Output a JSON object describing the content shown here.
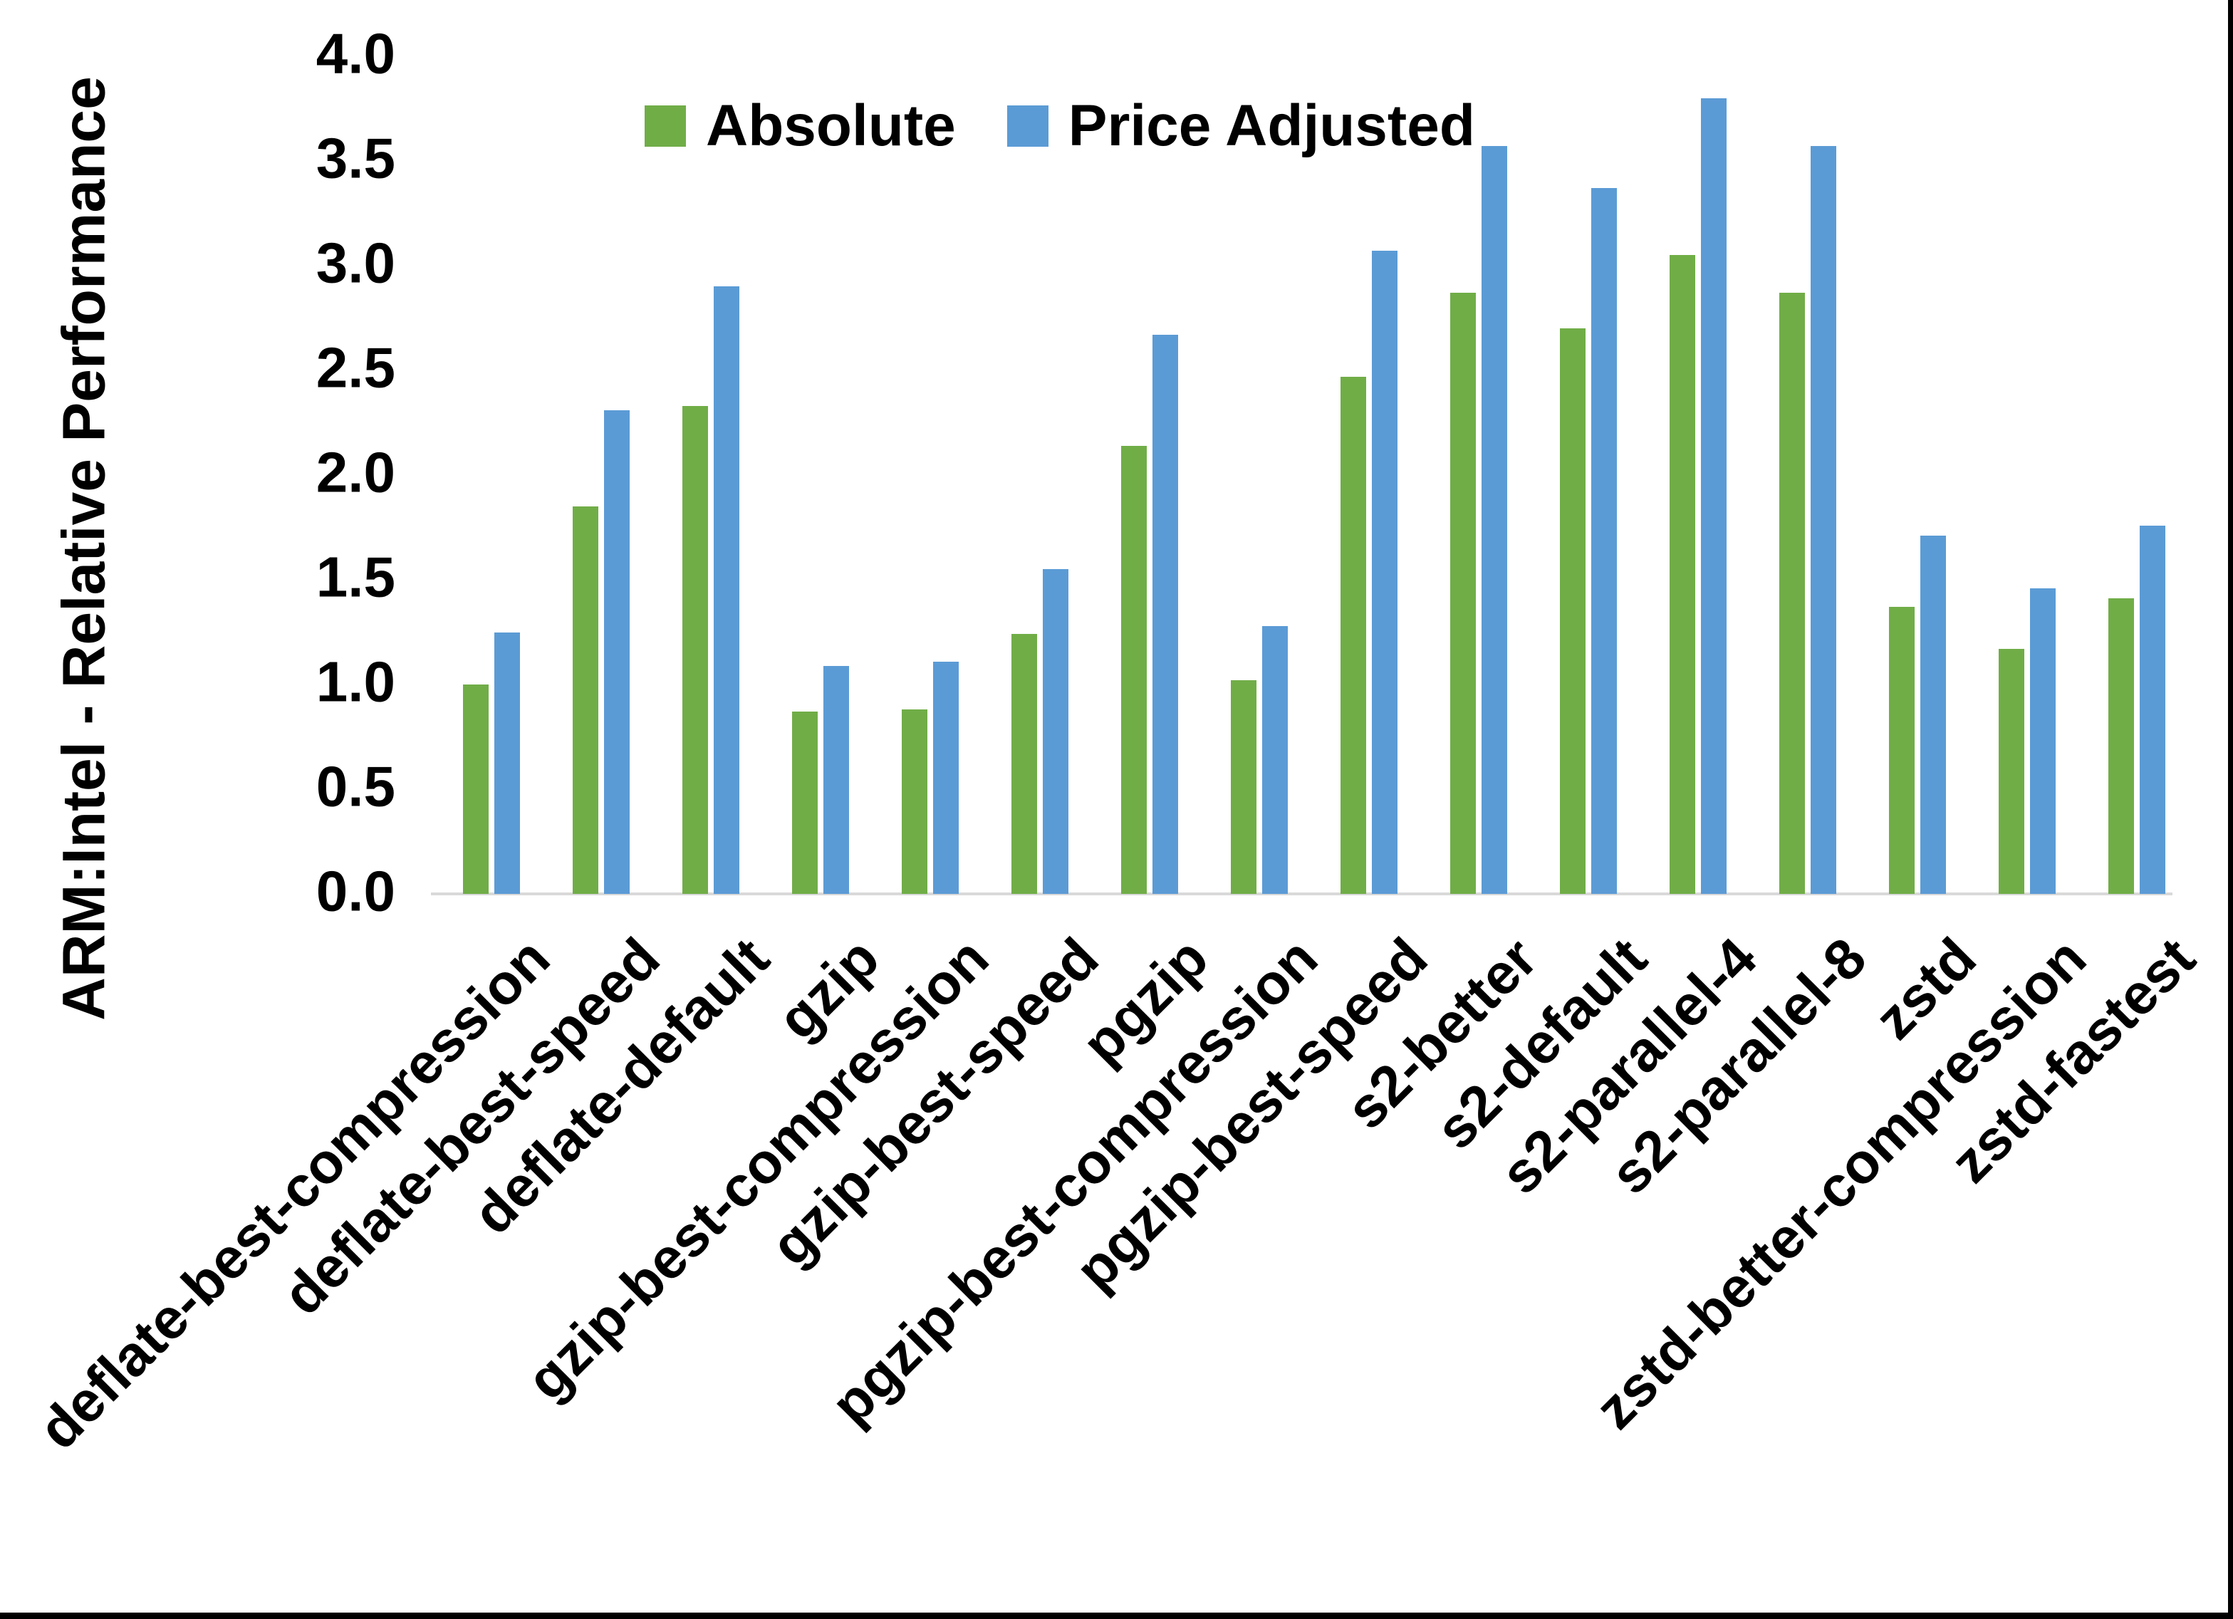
{
  "page": {
    "background": "#ffffff",
    "frame_border_color": "#000000"
  },
  "chart_data": {
    "type": "bar",
    "title": "",
    "xlabel": "",
    "ylabel": "ARM:Intel - Relative Performance",
    "ylim": [
      0,
      4
    ],
    "ytick_step": 0.5,
    "yticks": [
      "4.0",
      "3.5",
      "3.0",
      "2.5",
      "2.0",
      "1.5",
      "1.0",
      "0.5",
      "0.0"
    ],
    "grid": "off",
    "legend_position": "top-center",
    "axis_line_color": "#d9d9d9",
    "categories": [
      "deflate-best-compression",
      "deflate-best-speed",
      "deflate-default",
      "gzip",
      "gzip-best-compression",
      "gzip-best-speed",
      "pgzip",
      "pgzip-best-compression",
      "pgzip-best-speed",
      "s2-better",
      "s2-default",
      "s2-parallel-4",
      "s2-parallel-8",
      "zstd",
      "zstd-better-compression",
      "zstd-fastest"
    ],
    "series": [
      {
        "name": "Absolute",
        "color": "#70AD47",
        "values": [
          1.0,
          1.85,
          2.33,
          0.87,
          0.88,
          1.24,
          2.14,
          1.02,
          2.47,
          2.87,
          2.7,
          3.05,
          2.87,
          1.37,
          1.17,
          1.41
        ]
      },
      {
        "name": "Price Adjusted",
        "color": "#5B9BD5",
        "values": [
          1.25,
          2.31,
          2.9,
          1.09,
          1.11,
          1.55,
          2.67,
          1.28,
          3.07,
          3.57,
          3.37,
          3.8,
          3.57,
          1.71,
          1.46,
          1.76
        ]
      }
    ]
  }
}
